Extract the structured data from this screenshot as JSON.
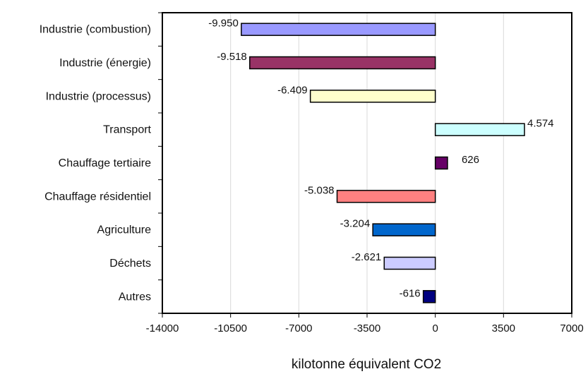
{
  "chart_data": {
    "type": "bar",
    "orientation": "horizontal",
    "title": "",
    "xlabel": "kilotonne équivalent CO2",
    "ylabel": "",
    "xlim": [
      -14000,
      7000
    ],
    "xticks": [
      -14000,
      -10500,
      -7000,
      -3500,
      0,
      3500,
      7000
    ],
    "xtick_labels": [
      "-14000",
      "-10500",
      "-7000",
      "-3500",
      "0",
      "3500",
      "7000"
    ],
    "grid": true,
    "legend": "none",
    "categories": [
      "Industrie (combustion)",
      "Industrie (énergie)",
      "Industrie (processus)",
      "Transport",
      "Chauffage tertiaire",
      "Chauffage résidentiel",
      "Agriculture",
      "Déchets",
      "Autres"
    ],
    "values": [
      -9950,
      -9518,
      -6409,
      4574,
      626,
      -5038,
      -3204,
      -2621,
      -616
    ],
    "data_labels": [
      "-9.950",
      "-9.518",
      "-6.409",
      "4.574",
      "626",
      "-5.038",
      "-3.204",
      "-2.621",
      "-616"
    ],
    "colors": [
      "#9999ff",
      "#993366",
      "#ffffcc",
      "#ccffff",
      "#660066",
      "#ff8080",
      "#0066cc",
      "#ccccff",
      "#000080"
    ]
  }
}
